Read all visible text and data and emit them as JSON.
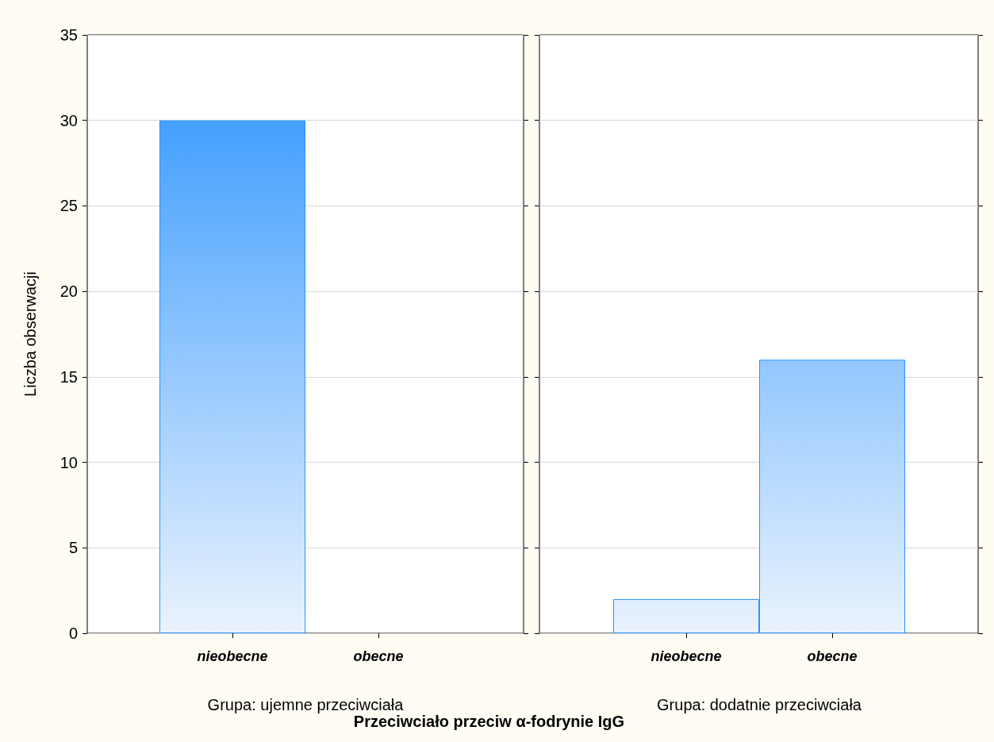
{
  "chart_data": [
    {
      "type": "bar",
      "categories": [
        "nieobecne",
        "obecne"
      ],
      "series": [
        {
          "color": "#2a92fe",
          "values": [
            30,
            0
          ]
        }
      ],
      "xlabel": "Grupa: ujemne przeciwciała",
      "ylabel": "Liczba obserwacji",
      "ylim": [
        0,
        35
      ],
      "yticks": [
        0,
        5,
        10,
        15,
        20,
        25,
        30,
        35
      ],
      "grid": "y",
      "annotations": [
        "Przeciwciało przeciw α-fodrynie IgG"
      ]
    },
    {
      "type": "bar",
      "categories": [
        "nieobecne",
        "obecne"
      ],
      "series": [
        {
          "color": "#2a92fe",
          "values": [
            2,
            16
          ]
        }
      ],
      "xlabel": "Grupa: dodatnie przeciwciała",
      "ylim": [
        0,
        35
      ],
      "yticks": [
        0,
        5,
        10,
        15,
        20,
        25,
        30,
        35
      ],
      "grid": "y",
      "tick_labels": "x"
    }
  ]
}
